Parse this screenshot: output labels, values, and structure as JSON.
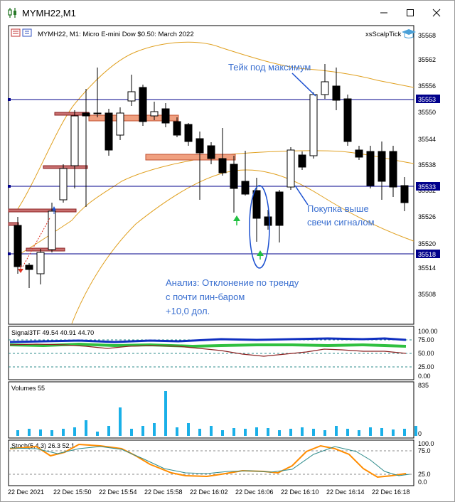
{
  "window": {
    "title": "MYMH22,M1",
    "minimize_label": "—",
    "maximize_label": "□",
    "close_label": "✕"
  },
  "chart": {
    "header": "MYMH22, M1:  Micro E-mini Dow $0.50: March 2022",
    "expert_name": "xsScalpTick",
    "price_scale": [
      "35568",
      "35562",
      "35556",
      "35550",
      "35544",
      "35538",
      "35532",
      "35526",
      "35520",
      "35514",
      "35508"
    ],
    "level_labels": [
      "35553",
      "35533",
      "35518"
    ],
    "annotations": {
      "take_profit": "Тейк под максимум",
      "buy_line1": "Покупка выше",
      "buy_line2": "свечи сигналом",
      "analysis_line1": "Анализ: Отклонение по тренду",
      "analysis_line2": "с почти пин-баром",
      "analysis_line3": "+10,0 дол."
    },
    "time_axis": [
      "22 Dec 2021",
      "22 Dec 15:50",
      "22 Dec 15:54",
      "22 Dec 15:58",
      "22 Dec 16:02",
      "22 Dec 16:06",
      "22 Dec 16:10",
      "22 Dec 16:14",
      "22 Dec 16:18"
    ]
  },
  "signal_panel": {
    "label": "Signal3TF 49.54 40.91 44.70",
    "scale": [
      "100.00",
      "75.00",
      "50.00",
      "25.00",
      "0.00"
    ]
  },
  "volume_panel": {
    "label": "Volumes 55",
    "scale": [
      "835",
      "0"
    ]
  },
  "stoch_panel": {
    "label": "Stoch(5,4,3) 26.3 52.1",
    "scale": [
      "100.0",
      "75.0",
      "25.0",
      "0.0"
    ]
  },
  "colors": {
    "bull": "#ffffff",
    "bear": "#000000",
    "level_line": "#00008b",
    "annotation": "#3a6fd0",
    "envelope": "#e0a020",
    "volume_bar": "#1ab0e8",
    "stoch_main": "#ff8c00",
    "stoch_signal": "#2e8b8b"
  }
}
